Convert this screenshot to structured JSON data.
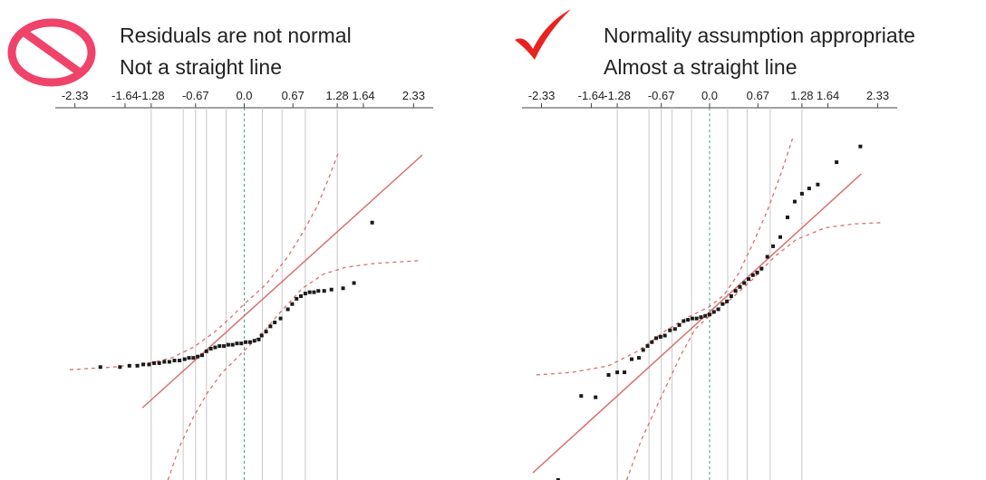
{
  "panels": {
    "left": {
      "icon": "prohibited-icon",
      "line1": "Residuals are not normal",
      "line2": "Not a straight line",
      "icon_color": "#f0436a"
    },
    "right": {
      "icon": "check-mark-icon",
      "line1": "Normality assumption appropriate",
      "line2": "Almost a straight line",
      "icon_color": "#e8231f"
    }
  },
  "chart_data": [
    {
      "type": "scatter",
      "title": "",
      "xlabel": "",
      "ylabel": "",
      "tick_labels": [
        "-2.33",
        "-1.64",
        "-1.28",
        "-0.67",
        "0.0",
        "0.67",
        "1.28",
        "1.64",
        "2.33"
      ],
      "tick_values": [
        -2.33,
        -1.64,
        -1.28,
        -0.67,
        0.0,
        0.67,
        1.28,
        1.64,
        2.33
      ],
      "gridlines": [
        -1.28,
        -0.84,
        -0.67,
        -0.52,
        -0.25,
        0.25,
        0.52,
        0.84,
        1.28
      ],
      "xlim": [
        -2.55,
        2.55
      ],
      "ylim": [
        -1.2,
        1.6
      ],
      "reference_line": {
        "slope": 0.5,
        "intercept": 0.05,
        "color": "#d9706e"
      },
      "confidence_bands": {
        "upper": [
          [
            -2.4,
            -0.36
          ],
          [
            -1.8,
            -0.34
          ],
          [
            -1.3,
            -0.31
          ],
          [
            -1.0,
            -0.27
          ],
          [
            -0.7,
            -0.19
          ],
          [
            -0.4,
            -0.07
          ],
          [
            -0.2,
            0.03
          ],
          [
            0.0,
            0.14
          ],
          [
            0.3,
            0.29
          ],
          [
            0.6,
            0.5
          ],
          [
            0.8,
            0.68
          ],
          [
            1.0,
            0.88
          ],
          [
            1.15,
            1.08
          ],
          [
            1.3,
            1.3
          ]
        ],
        "lower": [
          [
            -1.05,
            -1.2
          ],
          [
            -0.9,
            -0.96
          ],
          [
            -0.7,
            -0.72
          ],
          [
            -0.5,
            -0.53
          ],
          [
            -0.3,
            -0.38
          ],
          [
            -0.1,
            -0.27
          ],
          [
            0.1,
            -0.16
          ],
          [
            0.3,
            -0.05
          ],
          [
            0.5,
            0.08
          ],
          [
            0.8,
            0.26
          ],
          [
            1.1,
            0.37
          ],
          [
            1.4,
            0.42
          ],
          [
            1.8,
            0.45
          ],
          [
            2.4,
            0.47
          ]
        ],
        "color": "#d9706e"
      },
      "points": [
        [
          -1.98,
          -0.34
        ],
        [
          -1.71,
          -0.34
        ],
        [
          -1.58,
          -0.33
        ],
        [
          -1.47,
          -0.33
        ],
        [
          -1.39,
          -0.32
        ],
        [
          -1.31,
          -0.32
        ],
        [
          -1.24,
          -0.31
        ],
        [
          -1.17,
          -0.31
        ],
        [
          -1.1,
          -0.3
        ],
        [
          -1.03,
          -0.3
        ],
        [
          -0.96,
          -0.29
        ],
        [
          -0.89,
          -0.29
        ],
        [
          -0.82,
          -0.28
        ],
        [
          -0.76,
          -0.27
        ],
        [
          -0.7,
          -0.27
        ],
        [
          -0.64,
          -0.26
        ],
        [
          -0.58,
          -0.25
        ],
        [
          -0.52,
          -0.22
        ],
        [
          -0.46,
          -0.2
        ],
        [
          -0.4,
          -0.19
        ],
        [
          -0.34,
          -0.18
        ],
        [
          -0.28,
          -0.18
        ],
        [
          -0.22,
          -0.17
        ],
        [
          -0.16,
          -0.17
        ],
        [
          -0.1,
          -0.16
        ],
        [
          -0.04,
          -0.16
        ],
        [
          0.02,
          -0.15
        ],
        [
          0.08,
          -0.15
        ],
        [
          0.14,
          -0.14
        ],
        [
          0.2,
          -0.13
        ],
        [
          0.24,
          -0.1
        ],
        [
          0.3,
          -0.07
        ],
        [
          0.36,
          -0.03
        ],
        [
          0.42,
          -0.0
        ],
        [
          0.5,
          0.03
        ],
        [
          0.6,
          0.1
        ],
        [
          0.66,
          0.14
        ],
        [
          0.72,
          0.18
        ],
        [
          0.78,
          0.2
        ],
        [
          0.84,
          0.22
        ],
        [
          0.9,
          0.23
        ],
        [
          0.96,
          0.23
        ],
        [
          1.02,
          0.24
        ],
        [
          1.1,
          0.24
        ],
        [
          1.2,
          0.25
        ],
        [
          1.36,
          0.26
        ],
        [
          1.51,
          0.3
        ],
        [
          1.76,
          0.76
        ]
      ]
    },
    {
      "type": "scatter",
      "title": "",
      "xlabel": "",
      "ylabel": "",
      "tick_labels": [
        "-2.33",
        "-1.64",
        "-1.28",
        "-0.67",
        "0.0",
        "0.67",
        "1.28",
        "1.64",
        "2.33"
      ],
      "tick_values": [
        -2.33,
        -1.64,
        -1.28,
        -0.67,
        0.0,
        0.67,
        1.28,
        1.64,
        2.33
      ],
      "gridlines": [
        -1.28,
        -0.84,
        -0.67,
        -0.52,
        -0.25,
        0.25,
        0.52,
        0.84,
        1.28
      ],
      "xlim": [
        -2.55,
        2.55
      ],
      "ylim": [
        -1.2,
        1.6
      ],
      "reference_line": {
        "slope": 0.5,
        "intercept": 0.08,
        "color": "#d9706e"
      },
      "confidence_bands": {
        "upper": [
          [
            -2.4,
            -0.4
          ],
          [
            -1.9,
            -0.38
          ],
          [
            -1.4,
            -0.33
          ],
          [
            -1.0,
            -0.22
          ],
          [
            -0.6,
            -0.06
          ],
          [
            -0.3,
            0.04
          ],
          [
            0.0,
            0.12
          ],
          [
            0.2,
            0.21
          ],
          [
            0.4,
            0.37
          ],
          [
            0.6,
            0.6
          ],
          [
            0.8,
            0.85
          ],
          [
            1.0,
            1.15
          ],
          [
            1.15,
            1.4
          ]
        ],
        "lower": [
          [
            -1.15,
            -1.2
          ],
          [
            -0.95,
            -0.9
          ],
          [
            -0.7,
            -0.6
          ],
          [
            -0.4,
            -0.25
          ],
          [
            -0.2,
            -0.05
          ],
          [
            0.0,
            0.05
          ],
          [
            0.3,
            0.18
          ],
          [
            0.6,
            0.33
          ],
          [
            0.9,
            0.5
          ],
          [
            1.2,
            0.63
          ],
          [
            1.6,
            0.72
          ],
          [
            2.0,
            0.75
          ],
          [
            2.4,
            0.76
          ]
        ],
        "color": "#d9706e"
      },
      "points": [
        [
          -2.1,
          -1.2
        ],
        [
          -1.78,
          -0.56
        ],
        [
          -1.58,
          -0.57
        ],
        [
          -1.4,
          -0.4
        ],
        [
          -1.28,
          -0.38
        ],
        [
          -1.18,
          -0.38
        ],
        [
          -1.08,
          -0.28
        ],
        [
          -0.98,
          -0.27
        ],
        [
          -0.92,
          -0.21
        ],
        [
          -0.86,
          -0.18
        ],
        [
          -0.8,
          -0.15
        ],
        [
          -0.74,
          -0.12
        ],
        [
          -0.68,
          -0.11
        ],
        [
          -0.62,
          -0.1
        ],
        [
          -0.55,
          -0.06
        ],
        [
          -0.48,
          -0.05
        ],
        [
          -0.42,
          -0.02
        ],
        [
          -0.36,
          0.01
        ],
        [
          -0.3,
          0.02
        ],
        [
          -0.24,
          0.03
        ],
        [
          -0.18,
          0.03
        ],
        [
          -0.12,
          0.04
        ],
        [
          -0.06,
          0.05
        ],
        [
          0.0,
          0.06
        ],
        [
          0.06,
          0.08
        ],
        [
          0.12,
          0.1
        ],
        [
          0.18,
          0.14
        ],
        [
          0.24,
          0.16
        ],
        [
          0.3,
          0.2
        ],
        [
          0.36,
          0.24
        ],
        [
          0.42,
          0.27
        ],
        [
          0.48,
          0.3
        ],
        [
          0.54,
          0.33
        ],
        [
          0.6,
          0.36
        ],
        [
          0.66,
          0.38
        ],
        [
          0.72,
          0.41
        ],
        [
          0.8,
          0.5
        ],
        [
          0.88,
          0.58
        ],
        [
          0.98,
          0.65
        ],
        [
          1.08,
          0.8
        ],
        [
          1.18,
          0.92
        ],
        [
          1.28,
          0.98
        ],
        [
          1.38,
          1.02
        ],
        [
          1.5,
          1.05
        ],
        [
          1.76,
          1.22
        ],
        [
          2.09,
          1.34
        ]
      ]
    }
  ]
}
